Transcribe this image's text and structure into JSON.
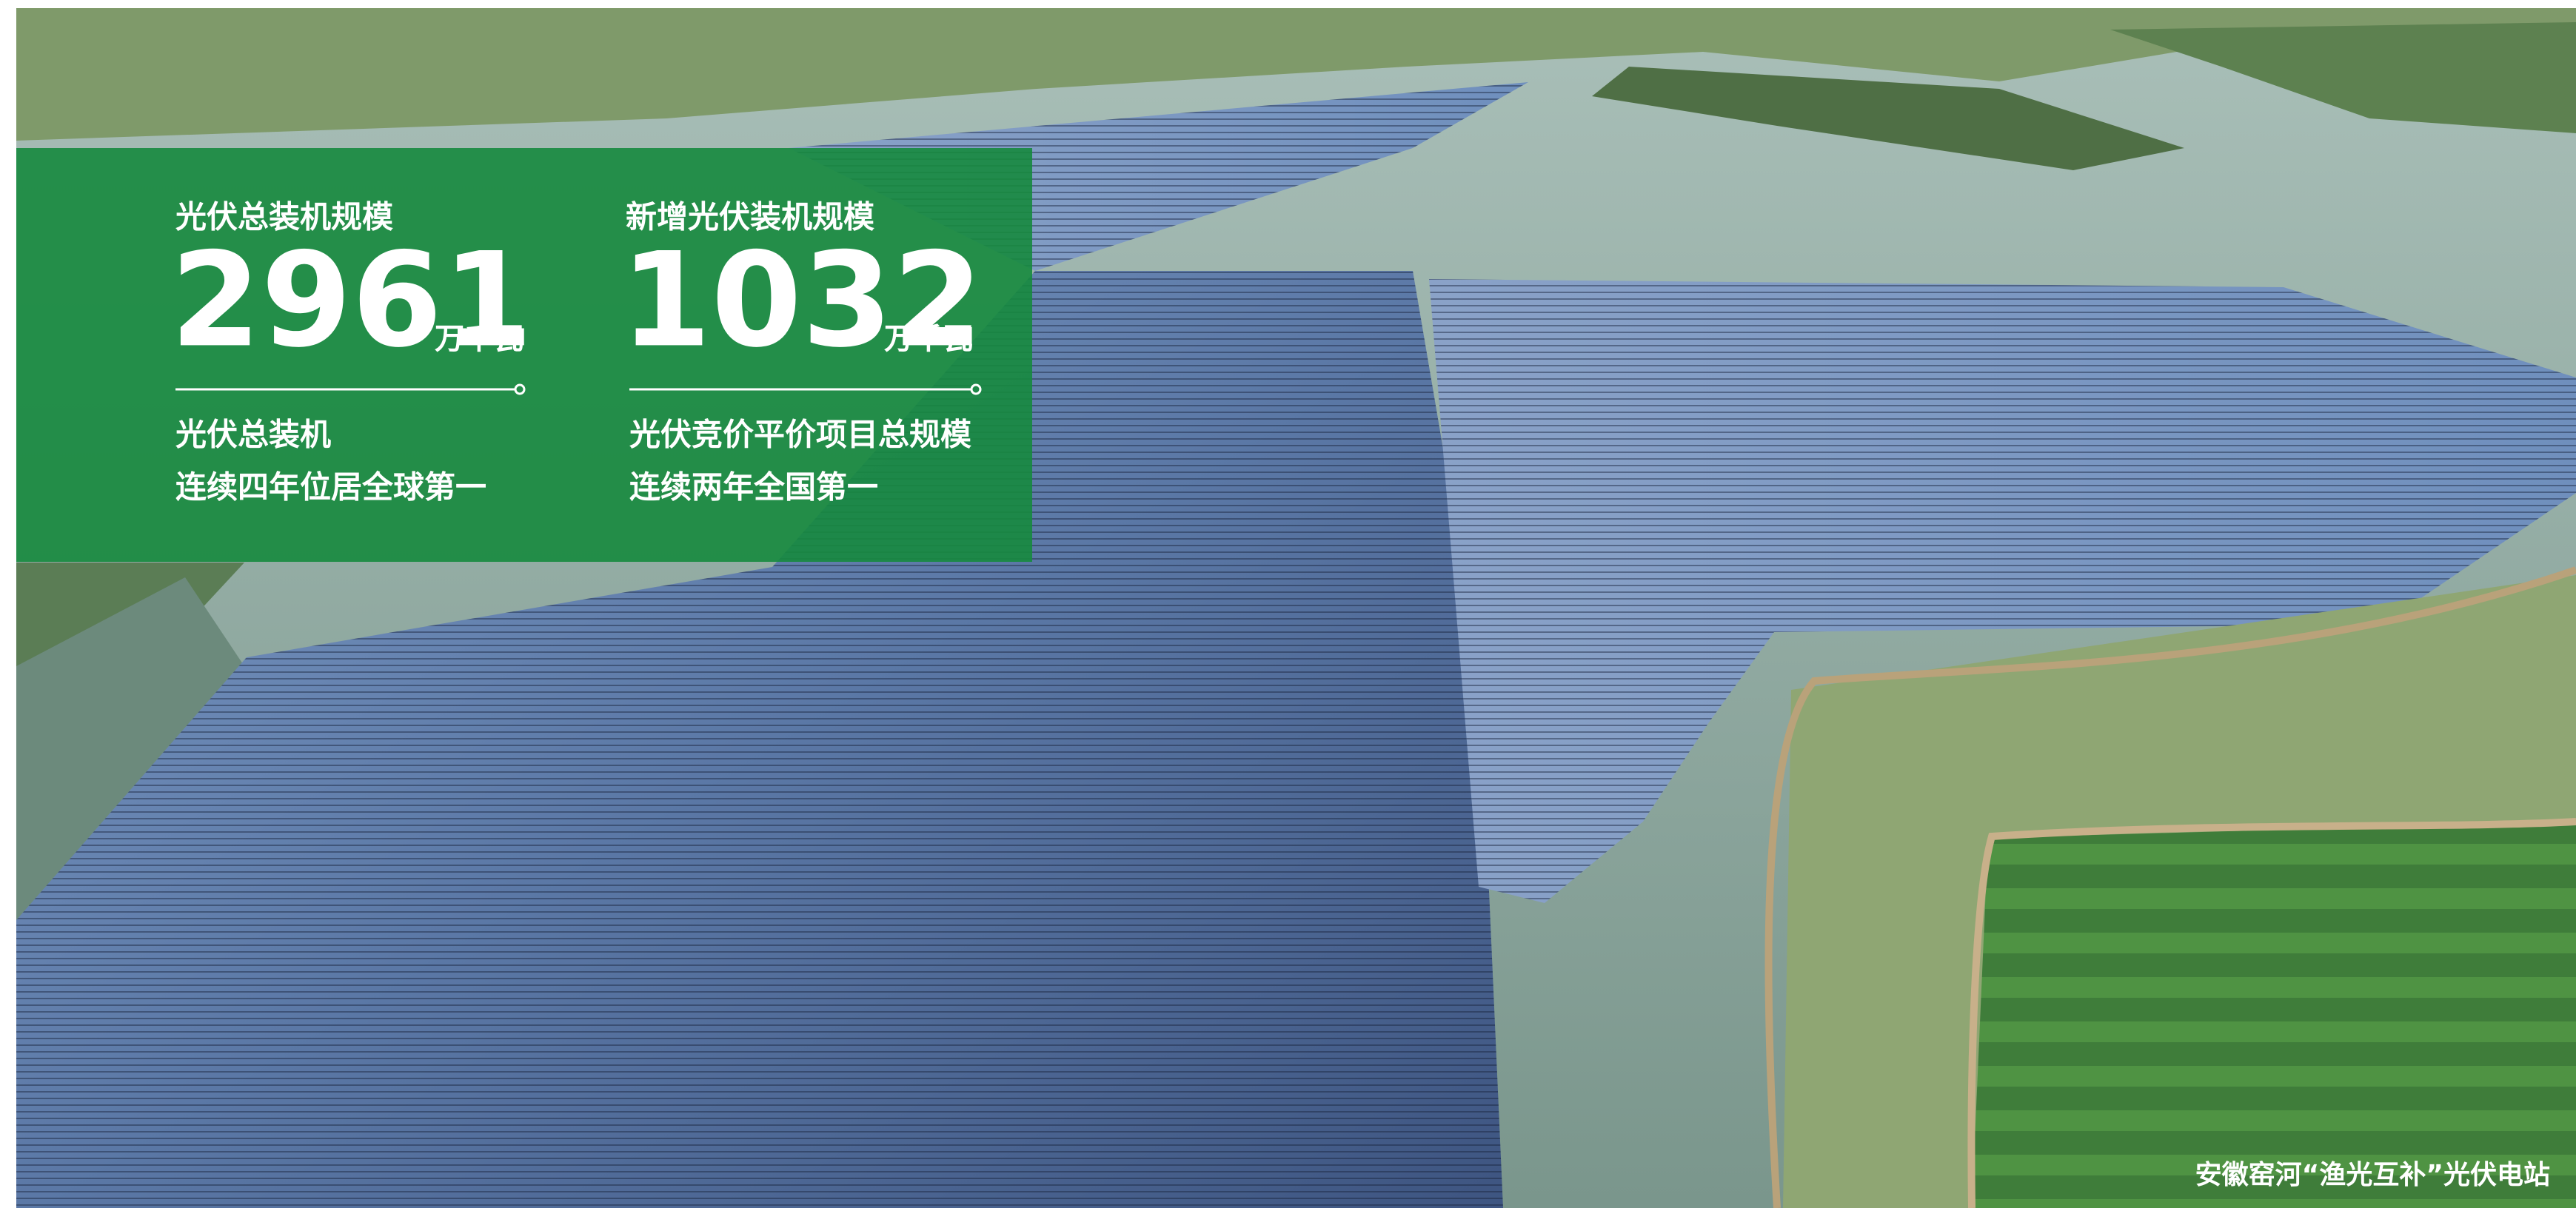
{
  "stats": [
    {
      "title": "光伏总装机规模",
      "value": 2961,
      "unit": "万千瓦",
      "desc": [
        "光伏总装机",
        "连续四年位居全球第一"
      ]
    },
    {
      "title": "新增光伏装机规模",
      "value": 1032,
      "unit": "万千瓦",
      "desc": [
        "光伏竞价平价项目总规模",
        "连续两年全国第一"
      ]
    }
  ],
  "caption": "安徽窑河“渔光互补”光伏电站"
}
